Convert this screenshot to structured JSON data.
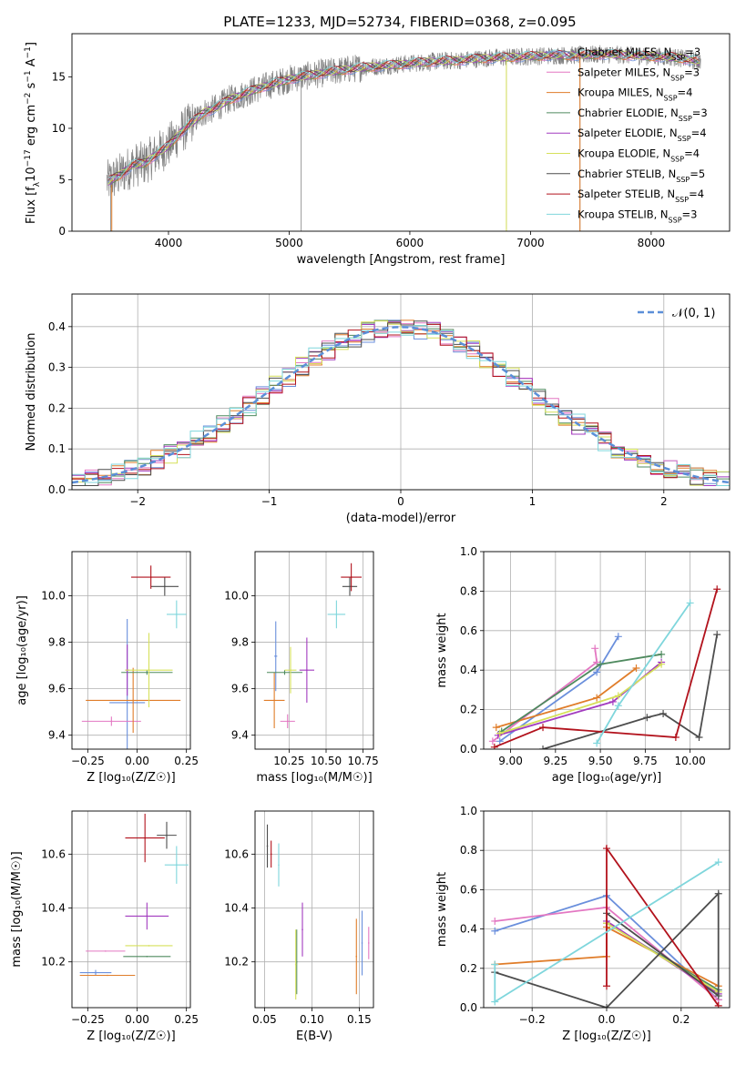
{
  "title": "PLATE=1233, MJD=52734, FIBERID=0368, z=0.095",
  "colors": {
    "Chabrier MILES": "#6a8fdc",
    "Salpeter MILES": "#e377c2",
    "Kroupa MILES": "#e07d2a",
    "Chabrier ELODIE": "#4f8a5f",
    "Salpeter ELODIE": "#a23bbf",
    "Kroupa ELODIE": "#d6e05a",
    "Chabrier STELIB": "#4d4d4d",
    "Salpeter STELIB": "#b2121c",
    "Kroupa STELIB": "#7fd6dc",
    "grid": "#b0b0b0",
    "normal_curve": "#5b8fd8",
    "data": "#808080"
  },
  "chart_data": [
    {
      "id": "spectrum",
      "type": "line",
      "title": "PLATE=1233, MJD=52734, FIBERID=0368, z=0.095",
      "xlabel": "wavelength [Angstrom, rest frame]",
      "ylabel": "Flux [f_λ 10⁻¹⁷ erg cm⁻² s⁻¹ A⁻¹]",
      "xlim": [
        3200,
        8650
      ],
      "ylim": [
        0,
        19.2
      ],
      "xticks": [
        4000,
        5000,
        6000,
        7000,
        8000
      ],
      "xtick_labels": [
        "4000",
        "5000",
        "6000",
        "7000",
        "8000"
      ],
      "yticks": [
        0,
        5,
        10,
        15
      ],
      "ytick_labels": [
        "0",
        "5",
        "10",
        "15"
      ],
      "legend_loc": "upper right",
      "data_outline": {
        "wavelength": [
          3500,
          3600,
          3700,
          3800,
          3900,
          4000,
          4100,
          4200,
          4300,
          4400,
          4500,
          4600,
          4700,
          4800,
          4900,
          5000,
          5200,
          5400,
          5600,
          5800,
          6000,
          6200,
          6400,
          6600,
          6800,
          7000,
          7200,
          7400,
          7600,
          7800,
          8000,
          8200,
          8400
        ],
        "flux": [
          4.8,
          5.5,
          6.4,
          6.6,
          7.5,
          8.3,
          9.6,
          10.6,
          11.6,
          12.0,
          12.8,
          13.2,
          13.7,
          14.1,
          14.4,
          14.8,
          15.2,
          15.6,
          15.9,
          16.1,
          16.3,
          16.5,
          16.6,
          16.8,
          16.9,
          17.0,
          17.1,
          17.1,
          17.2,
          17.1,
          17.0,
          16.9,
          16.5
        ],
        "dips": [
          {
            "wavelength": 5100,
            "flux": 0
          },
          {
            "wavelength": 6800,
            "flux": 0
          },
          {
            "wavelength": 7410,
            "flux": 0
          },
          {
            "wavelength": 3520,
            "flux": 0
          }
        ]
      },
      "series": [
        {
          "name": "Chabrier MILES, N_SSP=3",
          "label_main": "Chabrier MILES, N",
          "label_sub": "SSP",
          "label_tail": "=3",
          "key": "Chabrier MILES"
        },
        {
          "name": "Salpeter MILES, N_SSP=3",
          "label_main": "Salpeter MILES, N",
          "label_sub": "SSP",
          "label_tail": "=3",
          "key": "Salpeter MILES"
        },
        {
          "name": "Kroupa MILES, N_SSP=4",
          "label_main": "Kroupa MILES, N",
          "label_sub": "SSP",
          "label_tail": "=4",
          "key": "Kroupa MILES"
        },
        {
          "name": "Chabrier ELODIE, N_SSP=3",
          "label_main": "Chabrier ELODIE, N",
          "label_sub": "SSP",
          "label_tail": "=3",
          "key": "Chabrier ELODIE"
        },
        {
          "name": "Salpeter ELODIE, N_SSP=4",
          "label_main": "Salpeter ELODIE, N",
          "label_sub": "SSP",
          "label_tail": "=4",
          "key": "Salpeter ELODIE"
        },
        {
          "name": "Kroupa ELODIE, N_SSP=4",
          "label_main": "Kroupa ELODIE, N",
          "label_sub": "SSP",
          "label_tail": "=4",
          "key": "Kroupa ELODIE"
        },
        {
          "name": "Chabrier STELIB, N_SSP=5",
          "label_main": "Chabrier STELIB, N",
          "label_sub": "SSP",
          "label_tail": "=5",
          "key": "Chabrier STELIB"
        },
        {
          "name": "Salpeter STELIB, N_SSP=4",
          "label_main": "Salpeter STELIB, N",
          "label_sub": "SSP",
          "label_tail": "=4",
          "key": "Salpeter STELIB"
        },
        {
          "name": "Kroupa STELIB, N_SSP=3",
          "label_main": "Kroupa STELIB, N",
          "label_sub": "SSP",
          "label_tail": "=3",
          "key": "Kroupa STELIB"
        }
      ]
    },
    {
      "id": "residuals",
      "type": "area",
      "xlabel": "(data-model)/error",
      "ylabel": "Normed distribution",
      "xlim": [
        -2.5,
        2.5
      ],
      "ylim": [
        0,
        0.48
      ],
      "xticks": [
        -2,
        -1,
        0,
        1,
        2
      ],
      "xtick_labels": [
        "−2",
        "−1",
        "0",
        "1",
        "2"
      ],
      "yticks": [
        0,
        0.1,
        0.2,
        0.3,
        0.4
      ],
      "ytick_labels": [
        "0.0",
        "0.1",
        "0.2",
        "0.3",
        "0.4"
      ],
      "grid": true,
      "bin_width": 0.1,
      "bin_start": -2.5,
      "approx_shape": "normal",
      "legend_loc": "upper right",
      "legend_label": "𝒩(0, 1)"
    },
    {
      "id": "age_vs_Z",
      "type": "scatter",
      "xlabel": "Z [log₁₀(Z/Z☉)]",
      "ylabel": "age  [log₁₀(age/yr)]",
      "xlim": [
        -0.33,
        0.27
      ],
      "ylim": [
        9.34,
        10.19
      ],
      "xticks": [
        -0.25,
        0,
        0.25
      ],
      "xtick_labels": [
        "−0.25",
        "0.00",
        "0.25"
      ],
      "yticks": [
        9.4,
        9.6,
        9.8,
        10.0
      ],
      "ytick_labels": [
        "9.4",
        "9.6",
        "9.8",
        "10.0"
      ],
      "grid": true,
      "points": [
        {
          "key": "Chabrier MILES",
          "x": -0.05,
          "xerr": 0.09,
          "y": 9.54,
          "yerr": 0.36
        },
        {
          "key": "Salpeter MILES",
          "x": -0.13,
          "xerr": 0.15,
          "y": 9.46,
          "yerr": 0.02
        },
        {
          "key": "Kroupa MILES",
          "x": -0.02,
          "xerr": 0.24,
          "y": 9.55,
          "yerr": 0.14
        },
        {
          "key": "Chabrier ELODIE",
          "x": 0.05,
          "xerr": 0.13,
          "y": 9.67,
          "yerr": 0.01
        },
        {
          "key": "Salpeter ELODIE",
          "x": -0.05,
          "xerr": 0.01,
          "y": 9.68,
          "yerr": 0.11
        },
        {
          "key": "Kroupa ELODIE",
          "x": 0.06,
          "xerr": 0.12,
          "y": 9.68,
          "yerr": 0.16
        },
        {
          "key": "Chabrier STELIB",
          "x": 0.14,
          "xerr": 0.07,
          "y": 10.04,
          "yerr": 0.04
        },
        {
          "key": "Salpeter STELIB",
          "x": 0.07,
          "xerr": 0.1,
          "y": 10.08,
          "yerr": 0.05
        },
        {
          "key": "Kroupa STELIB",
          "x": 0.2,
          "xerr": 0.05,
          "y": 9.92,
          "yerr": 0.06
        }
      ]
    },
    {
      "id": "age_vs_mass",
      "type": "scatter",
      "xlabel": "mass [log₁₀(M/M☉)]",
      "ylabel": "",
      "xlim": [
        10.02,
        10.82
      ],
      "ylim": [
        9.34,
        10.19
      ],
      "xticks": [
        10.25,
        10.5,
        10.75
      ],
      "xtick_labels": [
        "10.25",
        "10.50",
        "10.75"
      ],
      "yticks": [
        9.4,
        9.6,
        9.8,
        10.0
      ],
      "ytick_labels": [
        "9.4",
        "9.6",
        "9.8",
        "10.0"
      ],
      "grid": true,
      "points": [
        {
          "key": "Chabrier MILES",
          "x": 10.16,
          "xerr": 0.01,
          "y": 9.74,
          "yerr": 0.15
        },
        {
          "key": "Salpeter MILES",
          "x": 10.24,
          "xerr": 0.05,
          "y": 9.46,
          "yerr": 0.03
        },
        {
          "key": "Kroupa MILES",
          "x": 10.15,
          "xerr": 0.07,
          "y": 9.55,
          "yerr": 0.12
        },
        {
          "key": "Chabrier ELODIE",
          "x": 10.22,
          "xerr": 0.12,
          "y": 9.67,
          "yerr": 0.01
        },
        {
          "key": "Salpeter ELODIE",
          "x": 10.37,
          "xerr": 0.05,
          "y": 9.68,
          "yerr": 0.14
        },
        {
          "key": "Kroupa ELODIE",
          "x": 10.26,
          "xerr": 0.04,
          "y": 9.68,
          "yerr": 0.1
        },
        {
          "key": "Chabrier STELIB",
          "x": 10.66,
          "xerr": 0.05,
          "y": 10.04,
          "yerr": 0.04
        },
        {
          "key": "Salpeter STELIB",
          "x": 10.67,
          "xerr": 0.07,
          "y": 10.08,
          "yerr": 0.06
        },
        {
          "key": "Kroupa STELIB",
          "x": 10.57,
          "xerr": 0.06,
          "y": 9.92,
          "yerr": 0.06
        }
      ]
    },
    {
      "id": "weight_vs_age",
      "type": "line",
      "xlabel": "age  [log₁₀(age/yr)]",
      "ylabel": "mass weight",
      "xlim": [
        8.85,
        10.22
      ],
      "ylim": [
        0,
        1.0
      ],
      "xticks": [
        9.0,
        9.25,
        9.5,
        9.75,
        10.0
      ],
      "xtick_labels": [
        "9.00",
        "9.25",
        "9.50",
        "9.75",
        "10.00"
      ],
      "yticks": [
        0,
        0.2,
        0.4,
        0.6,
        0.8,
        1.0
      ],
      "ytick_labels": [
        "0.0",
        "0.2",
        "0.4",
        "0.6",
        "0.8",
        "1.0"
      ],
      "grid": true,
      "series": [
        {
          "key": "Chabrier MILES",
          "x": [
            8.94,
            9.48,
            9.6
          ],
          "y": [
            0.04,
            0.39,
            0.57
          ]
        },
        {
          "key": "Salpeter MILES",
          "x": [
            8.9,
            9.48,
            9.47
          ],
          "y": [
            0.04,
            0.44,
            0.51
          ]
        },
        {
          "key": "Kroupa MILES",
          "x": [
            8.92,
            9.48,
            9.7
          ],
          "y": [
            0.11,
            0.26,
            0.41
          ]
        },
        {
          "key": "Chabrier ELODIE",
          "x": [
            8.95,
            9.5,
            9.84
          ],
          "y": [
            0.09,
            0.43,
            0.48
          ]
        },
        {
          "key": "Salpeter ELODIE",
          "x": [
            8.93,
            9.57,
            9.84
          ],
          "y": [
            0.07,
            0.24,
            0.44
          ]
        },
        {
          "key": "Kroupa ELODIE",
          "x": [
            8.94,
            9.6,
            9.84
          ],
          "y": [
            0.08,
            0.27,
            0.43
          ]
        },
        {
          "key": "Chabrier STELIB",
          "x": [
            9.18,
            9.76,
            9.85,
            10.05,
            10.15
          ],
          "y": [
            0.0,
            0.16,
            0.18,
            0.06,
            0.58
          ]
        },
        {
          "key": "Salpeter STELIB",
          "x": [
            8.91,
            9.18,
            9.92,
            10.15
          ],
          "y": [
            0.01,
            0.11,
            0.06,
            0.81
          ]
        },
        {
          "key": "Kroupa STELIB",
          "x": [
            9.48,
            9.6,
            10.0
          ],
          "y": [
            0.03,
            0.22,
            0.74
          ]
        }
      ]
    },
    {
      "id": "mass_vs_Z",
      "type": "scatter",
      "xlabel": "Z [log₁₀(Z/Z☉)]",
      "ylabel": "mass [log₁₀(M/M☉)]",
      "xlim": [
        -0.33,
        0.27
      ],
      "ylim": [
        10.03,
        10.76
      ],
      "xticks": [
        -0.25,
        0,
        0.25
      ],
      "xtick_labels": [
        "−0.25",
        "0.00",
        "0.25"
      ],
      "yticks": [
        10.2,
        10.4,
        10.6
      ],
      "ytick_labels": [
        "10.2",
        "10.4",
        "10.6"
      ],
      "grid": true,
      "points": [
        {
          "key": "Chabrier MILES",
          "x": -0.21,
          "xerr": 0.08,
          "y": 10.16,
          "yerr": 0.01
        },
        {
          "key": "Salpeter MILES",
          "x": -0.16,
          "xerr": 0.1,
          "y": 10.24,
          "yerr": 0.0
        },
        {
          "key": "Kroupa MILES",
          "x": -0.15,
          "xerr": 0.14,
          "y": 10.15,
          "yerr": 0.0
        },
        {
          "key": "Chabrier ELODIE",
          "x": 0.05,
          "xerr": 0.12,
          "y": 10.22,
          "yerr": 0.0
        },
        {
          "key": "Salpeter ELODIE",
          "x": 0.05,
          "xerr": 0.11,
          "y": 10.37,
          "yerr": 0.05
        },
        {
          "key": "Kroupa ELODIE",
          "x": 0.06,
          "xerr": 0.12,
          "y": 10.26,
          "yerr": 0.0
        },
        {
          "key": "Chabrier STELIB",
          "x": 0.15,
          "xerr": 0.05,
          "y": 10.67,
          "yerr": 0.05
        },
        {
          "key": "Salpeter STELIB",
          "x": 0.04,
          "xerr": 0.1,
          "y": 10.66,
          "yerr": 0.09
        },
        {
          "key": "Kroupa STELIB",
          "x": 0.2,
          "xerr": 0.06,
          "y": 10.56,
          "yerr": 0.07
        }
      ]
    },
    {
      "id": "mass_vs_ebv",
      "type": "scatter",
      "xlabel": "E(B-V)",
      "ylabel": "",
      "xlim": [
        0.04,
        0.165
      ],
      "ylim": [
        10.03,
        10.76
      ],
      "xticks": [
        0.05,
        0.1,
        0.15
      ],
      "xtick_labels": [
        "0.05",
        "0.10",
        "0.15"
      ],
      "yticks": [
        10.2,
        10.4,
        10.6
      ],
      "ytick_labels": [
        "10.2",
        "10.4",
        "10.6"
      ],
      "grid": true,
      "points": [
        {
          "key": "Chabrier MILES",
          "x": 0.153,
          "y": 10.27,
          "yerr": 0.12
        },
        {
          "key": "Salpeter MILES",
          "x": 0.16,
          "y": 10.27,
          "yerr": 0.06
        },
        {
          "key": "Kroupa MILES",
          "x": 0.147,
          "y": 10.22,
          "yerr": 0.14
        },
        {
          "key": "Chabrier ELODIE",
          "x": 0.084,
          "y": 10.2,
          "yerr": 0.12
        },
        {
          "key": "Salpeter ELODIE",
          "x": 0.09,
          "y": 10.32,
          "yerr": 0.1
        },
        {
          "key": "Kroupa ELODIE",
          "x": 0.083,
          "y": 10.19,
          "yerr": 0.13
        },
        {
          "key": "Chabrier STELIB",
          "x": 0.053,
          "y": 10.63,
          "yerr": 0.08
        },
        {
          "key": "Salpeter STELIB",
          "x": 0.057,
          "y": 10.6,
          "yerr": 0.05
        },
        {
          "key": "Kroupa STELIB",
          "x": 0.065,
          "y": 10.56,
          "yerr": 0.08
        }
      ]
    },
    {
      "id": "weight_vs_Z",
      "type": "line",
      "xlabel": "Z [log₁₀(Z/Z☉)]",
      "ylabel": "mass weight",
      "xlim": [
        -0.33,
        0.33
      ],
      "ylim": [
        0,
        1.0
      ],
      "xticks": [
        -0.2,
        0,
        0.2
      ],
      "xtick_labels": [
        "−0.2",
        "0.0",
        "0.2"
      ],
      "yticks": [
        0,
        0.2,
        0.4,
        0.6,
        0.8,
        1.0
      ],
      "ytick_labels": [
        "0.0",
        "0.2",
        "0.4",
        "0.6",
        "0.8",
        "1.0"
      ],
      "grid": true,
      "series": [
        {
          "key": "Chabrier MILES",
          "x": [
            -0.3,
            0.0,
            0.3
          ],
          "y": [
            0.39,
            0.57,
            0.04
          ]
        },
        {
          "key": "Salpeter MILES",
          "x": [
            -0.3,
            0.0,
            0.3
          ],
          "y": [
            0.44,
            0.51,
            0.04
          ]
        },
        {
          "key": "Kroupa MILES",
          "x": [
            -0.3,
            0.0,
            0.0,
            0.3
          ],
          "y": [
            0.22,
            0.26,
            0.41,
            0.11
          ]
        },
        {
          "key": "Chabrier ELODIE",
          "x": [
            0.0,
            0.3
          ],
          "y": [
            0.43,
            0.09
          ]
        },
        {
          "key": "Salpeter ELODIE",
          "x": [
            0.0,
            0.3
          ],
          "y": [
            0.44,
            0.07
          ]
        },
        {
          "key": "Kroupa ELODIE",
          "x": [
            0.0,
            0.3
          ],
          "y": [
            0.43,
            0.08
          ]
        },
        {
          "key": "Chabrier STELIB",
          "x": [
            -0.3,
            0.0,
            0.3,
            0.3,
            0.0
          ],
          "y": [
            0.18,
            0.0,
            0.58,
            0.06,
            0.48
          ]
        },
        {
          "key": "Salpeter STELIB",
          "x": [
            0.0,
            0.0,
            0.3
          ],
          "y": [
            0.11,
            0.81,
            0.01
          ]
        },
        {
          "key": "Kroupa STELIB",
          "x": [
            -0.3,
            -0.3,
            0.3
          ],
          "y": [
            0.22,
            0.03,
            0.74
          ]
        }
      ]
    }
  ]
}
